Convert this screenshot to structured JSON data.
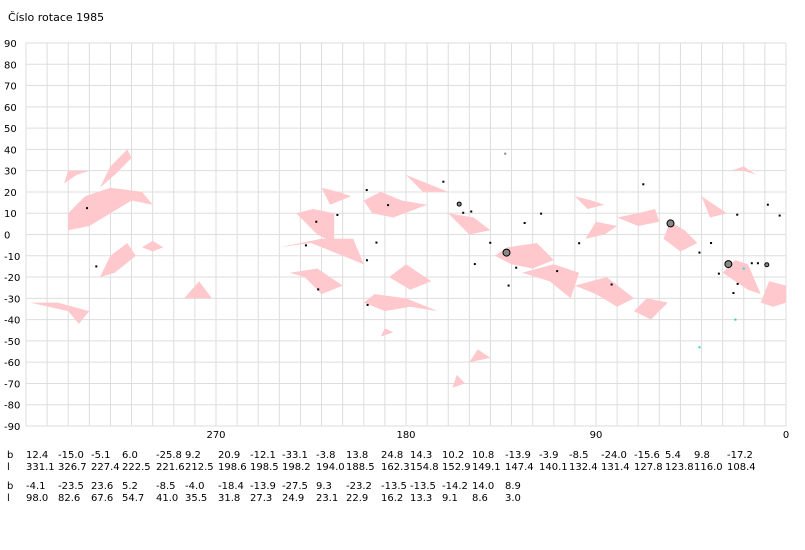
{
  "chart_data": {
    "type": "scatter",
    "title": "Číslo rotace  1985",
    "xlim": [
      360,
      0
    ],
    "ylim": [
      -90,
      90
    ],
    "xticks": [
      "270",
      "180",
      "90",
      "0"
    ],
    "yticks": [
      "90",
      "80",
      "70",
      "60",
      "50",
      "40",
      "30",
      "20",
      "10",
      "0",
      "-10",
      "-20",
      "-30",
      "-40",
      "-50",
      "-60",
      "-70",
      "-80",
      "-90"
    ],
    "grid": true,
    "points": [
      {
        "l": 331.1,
        "b": 12.4,
        "size": 1
      },
      {
        "l": 326.7,
        "b": -15.0,
        "size": 1
      },
      {
        "l": 227.4,
        "b": -5.1,
        "size": 1
      },
      {
        "l": 222.5,
        "b": 6.0,
        "size": 1
      },
      {
        "l": 221.6,
        "b": -25.8,
        "size": 1
      },
      {
        "l": 212.5,
        "b": 9.2,
        "size": 1
      },
      {
        "l": 198.6,
        "b": 20.9,
        "size": 1
      },
      {
        "l": 198.5,
        "b": -12.1,
        "size": 1
      },
      {
        "l": 198.2,
        "b": -33.1,
        "size": 1
      },
      {
        "l": 194.0,
        "b": -3.8,
        "size": 1
      },
      {
        "l": 188.5,
        "b": 13.8,
        "size": 1
      },
      {
        "l": 162.3,
        "b": 24.8,
        "size": 1
      },
      {
        "l": 154.8,
        "b": 14.3,
        "size": 2
      },
      {
        "l": 152.9,
        "b": 10.2,
        "size": 1
      },
      {
        "l": 149.1,
        "b": 10.8,
        "size": 1
      },
      {
        "l": 147.4,
        "b": -13.9,
        "size": 1
      },
      {
        "l": 140.1,
        "b": -3.9,
        "size": 1
      },
      {
        "l": 132.4,
        "b": -8.5,
        "size": 3
      },
      {
        "l": 131.4,
        "b": -24.0,
        "size": 1
      },
      {
        "l": 127.8,
        "b": -15.6,
        "size": 1
      },
      {
        "l": 123.8,
        "b": 5.4,
        "size": 1
      },
      {
        "l": 116.0,
        "b": 9.8,
        "size": 1
      },
      {
        "l": 108.4,
        "b": -17.2,
        "size": 1
      },
      {
        "l": 98.0,
        "b": -4.1,
        "size": 1
      },
      {
        "l": 82.6,
        "b": -23.5,
        "size": 1
      },
      {
        "l": 67.6,
        "b": 23.6,
        "size": 1
      },
      {
        "l": 54.7,
        "b": 5.2,
        "size": 3
      },
      {
        "l": 41.0,
        "b": -8.5,
        "size": 1
      },
      {
        "l": 35.5,
        "b": -4.0,
        "size": 1
      },
      {
        "l": 31.8,
        "b": -18.4,
        "size": 1
      },
      {
        "l": 27.3,
        "b": -13.9,
        "size": 3
      },
      {
        "l": 24.9,
        "b": -27.5,
        "size": 1
      },
      {
        "l": 23.1,
        "b": 9.3,
        "size": 1
      },
      {
        "l": 22.9,
        "b": -23.2,
        "size": 1
      },
      {
        "l": 16.2,
        "b": -13.5,
        "size": 1
      },
      {
        "l": 13.3,
        "b": -13.5,
        "size": 1
      },
      {
        "l": 9.1,
        "b": -14.2,
        "size": 2
      },
      {
        "l": 8.6,
        "b": 14.0,
        "size": 1
      },
      {
        "l": 3.0,
        "b": 8.9,
        "size": 1
      }
    ],
    "extra_points": [
      {
        "l": 133.0,
        "b": 38.0,
        "color": "#888888"
      },
      {
        "l": 41.0,
        "b": -53.0,
        "color": "#33cccc"
      },
      {
        "l": 24.0,
        "b": -40.0,
        "color": "#33cccc"
      },
      {
        "l": 20.0,
        "b": -16.0,
        "color": "#33cccc"
      }
    ],
    "regions_color": "#ffc8cc",
    "regions": [
      [
        [
          340,
          -36
        ],
        [
          335,
          -42
        ],
        [
          330,
          -36
        ],
        [
          345,
          -32
        ],
        [
          358,
          -32
        ]
      ],
      [
        [
          340,
          2
        ],
        [
          330,
          4
        ],
        [
          320,
          10
        ],
        [
          310,
          16
        ],
        [
          300,
          14
        ],
        [
          305,
          20
        ],
        [
          320,
          22
        ],
        [
          332,
          18
        ],
        [
          340,
          10
        ]
      ],
      [
        [
          325,
          22
        ],
        [
          318,
          28
        ],
        [
          310,
          36
        ],
        [
          312,
          40
        ],
        [
          320,
          32
        ]
      ],
      [
        [
          342,
          24
        ],
        [
          336,
          28
        ],
        [
          330,
          30
        ],
        [
          340,
          30
        ]
      ],
      [
        [
          325,
          -20
        ],
        [
          320,
          -10
        ],
        [
          312,
          -4
        ],
        [
          308,
          -10
        ],
        [
          318,
          -18
        ]
      ],
      [
        [
          285,
          -30
        ],
        [
          278,
          -22
        ],
        [
          272,
          -30
        ]
      ],
      [
        [
          305,
          -6
        ],
        [
          300,
          -3
        ],
        [
          295,
          -6
        ],
        [
          300,
          -8
        ]
      ],
      [
        [
          232,
          10
        ],
        [
          222,
          0
        ],
        [
          214,
          -4
        ],
        [
          214,
          10
        ],
        [
          224,
          12
        ]
      ],
      [
        [
          240,
          -6
        ],
        [
          225,
          -4
        ],
        [
          200,
          -14
        ],
        [
          205,
          -2
        ],
        [
          220,
          -2
        ]
      ],
      [
        [
          235,
          -18
        ],
        [
          228,
          -20
        ],
        [
          220,
          -28
        ],
        [
          210,
          -24
        ],
        [
          222,
          -16
        ]
      ],
      [
        [
          220,
          22
        ],
        [
          212,
          20
        ],
        [
          206,
          18
        ],
        [
          216,
          14
        ]
      ],
      [
        [
          200,
          16
        ],
        [
          192,
          20
        ],
        [
          182,
          16
        ],
        [
          170,
          14
        ],
        [
          186,
          8
        ],
        [
          196,
          10
        ]
      ],
      [
        [
          188,
          -20
        ],
        [
          178,
          -26
        ],
        [
          168,
          -22
        ],
        [
          180,
          -14
        ]
      ],
      [
        [
          200,
          -32
        ],
        [
          190,
          -36
        ],
        [
          178,
          -34
        ],
        [
          165,
          -36
        ],
        [
          180,
          -30
        ],
        [
          195,
          -28
        ]
      ],
      [
        [
          180,
          28
        ],
        [
          170,
          24
        ],
        [
          160,
          20
        ],
        [
          172,
          20
        ]
      ],
      [
        [
          160,
          10
        ],
        [
          148,
          8
        ],
        [
          140,
          2
        ],
        [
          150,
          0
        ]
      ],
      [
        [
          138,
          -10
        ],
        [
          130,
          -14
        ],
        [
          120,
          -16
        ],
        [
          110,
          -12
        ],
        [
          118,
          -4
        ],
        [
          132,
          -6
        ]
      ],
      [
        [
          125,
          -18
        ],
        [
          112,
          -22
        ],
        [
          102,
          -30
        ],
        [
          98,
          -18
        ],
        [
          110,
          -14
        ]
      ],
      [
        [
          100,
          -24
        ],
        [
          90,
          -28
        ],
        [
          80,
          -34
        ],
        [
          72,
          -30
        ],
        [
          85,
          -20
        ]
      ],
      [
        [
          95,
          -2
        ],
        [
          86,
          0
        ],
        [
          80,
          4
        ],
        [
          90,
          6
        ]
      ],
      [
        [
          100,
          18
        ],
        [
          92,
          16
        ],
        [
          86,
          14
        ],
        [
          94,
          12
        ]
      ],
      [
        [
          72,
          -36
        ],
        [
          64,
          -40
        ],
        [
          56,
          -32
        ],
        [
          66,
          -30
        ]
      ],
      [
        [
          80,
          8
        ],
        [
          70,
          10
        ],
        [
          62,
          12
        ],
        [
          60,
          6
        ],
        [
          70,
          4
        ]
      ],
      [
        [
          55,
          6
        ],
        [
          48,
          2
        ],
        [
          42,
          -4
        ],
        [
          50,
          -8
        ],
        [
          58,
          -2
        ]
      ],
      [
        [
          40,
          18
        ],
        [
          34,
          14
        ],
        [
          28,
          10
        ],
        [
          36,
          8
        ]
      ],
      [
        [
          30,
          -18
        ],
        [
          24,
          -22
        ],
        [
          18,
          -26
        ],
        [
          12,
          -28
        ],
        [
          18,
          -14
        ],
        [
          24,
          -12
        ]
      ],
      [
        [
          12,
          -32
        ],
        [
          6,
          -34
        ],
        [
          0,
          -32
        ],
        [
          0,
          -24
        ],
        [
          8,
          -22
        ]
      ],
      [
        [
          26,
          30
        ],
        [
          20,
          30
        ],
        [
          14,
          28
        ],
        [
          20,
          32
        ]
      ],
      [
        [
          150,
          -60
        ],
        [
          140,
          -58
        ],
        [
          146,
          -54
        ]
      ],
      [
        [
          158,
          -72
        ],
        [
          152,
          -70
        ],
        [
          156,
          -66
        ]
      ],
      [
        [
          192,
          -48
        ],
        [
          186,
          -46
        ],
        [
          190,
          -44
        ]
      ]
    ],
    "table": [
      {
        "b": [
          "12.4",
          "-15.0",
          "-5.1",
          "6.0",
          "-25.8",
          "9.2",
          "20.9",
          "-12.1",
          "-33.1",
          "-3.8",
          "13.8",
          "24.8",
          "14.3",
          "10.2",
          "10.8",
          "-13.9",
          "-3.9",
          "-8.5",
          "-24.0",
          "-15.6",
          "5.4",
          "9.8",
          "-17.2"
        ],
        "l": [
          "331.1",
          "326.7",
          "227.4",
          "222.5",
          "221.6",
          "212.5",
          "198.6",
          "198.5",
          "198.2",
          "194.0",
          "188.5",
          "162.3",
          "154.8",
          "152.9",
          "149.1",
          "147.4",
          "140.1",
          "132.4",
          "131.4",
          "127.8",
          "123.8",
          "116.0",
          "108.4"
        ]
      },
      {
        "b": [
          "-4.1",
          "-23.5",
          "23.6",
          "5.2",
          "-8.5",
          "-4.0",
          "-18.4",
          "-13.9",
          "-27.5",
          "9.3",
          "-23.2",
          "-13.5",
          "-13.5",
          "-14.2",
          "14.0",
          "8.9"
        ],
        "l": [
          "98.0",
          "82.6",
          "67.6",
          "54.7",
          "41.0",
          "35.5",
          "31.8",
          "27.3",
          "24.9",
          "23.1",
          "22.9",
          "16.2",
          "13.3",
          "9.1",
          "8.6",
          "3.0"
        ]
      }
    ],
    "row_labels": {
      "b": "b",
      "l": "l"
    }
  }
}
